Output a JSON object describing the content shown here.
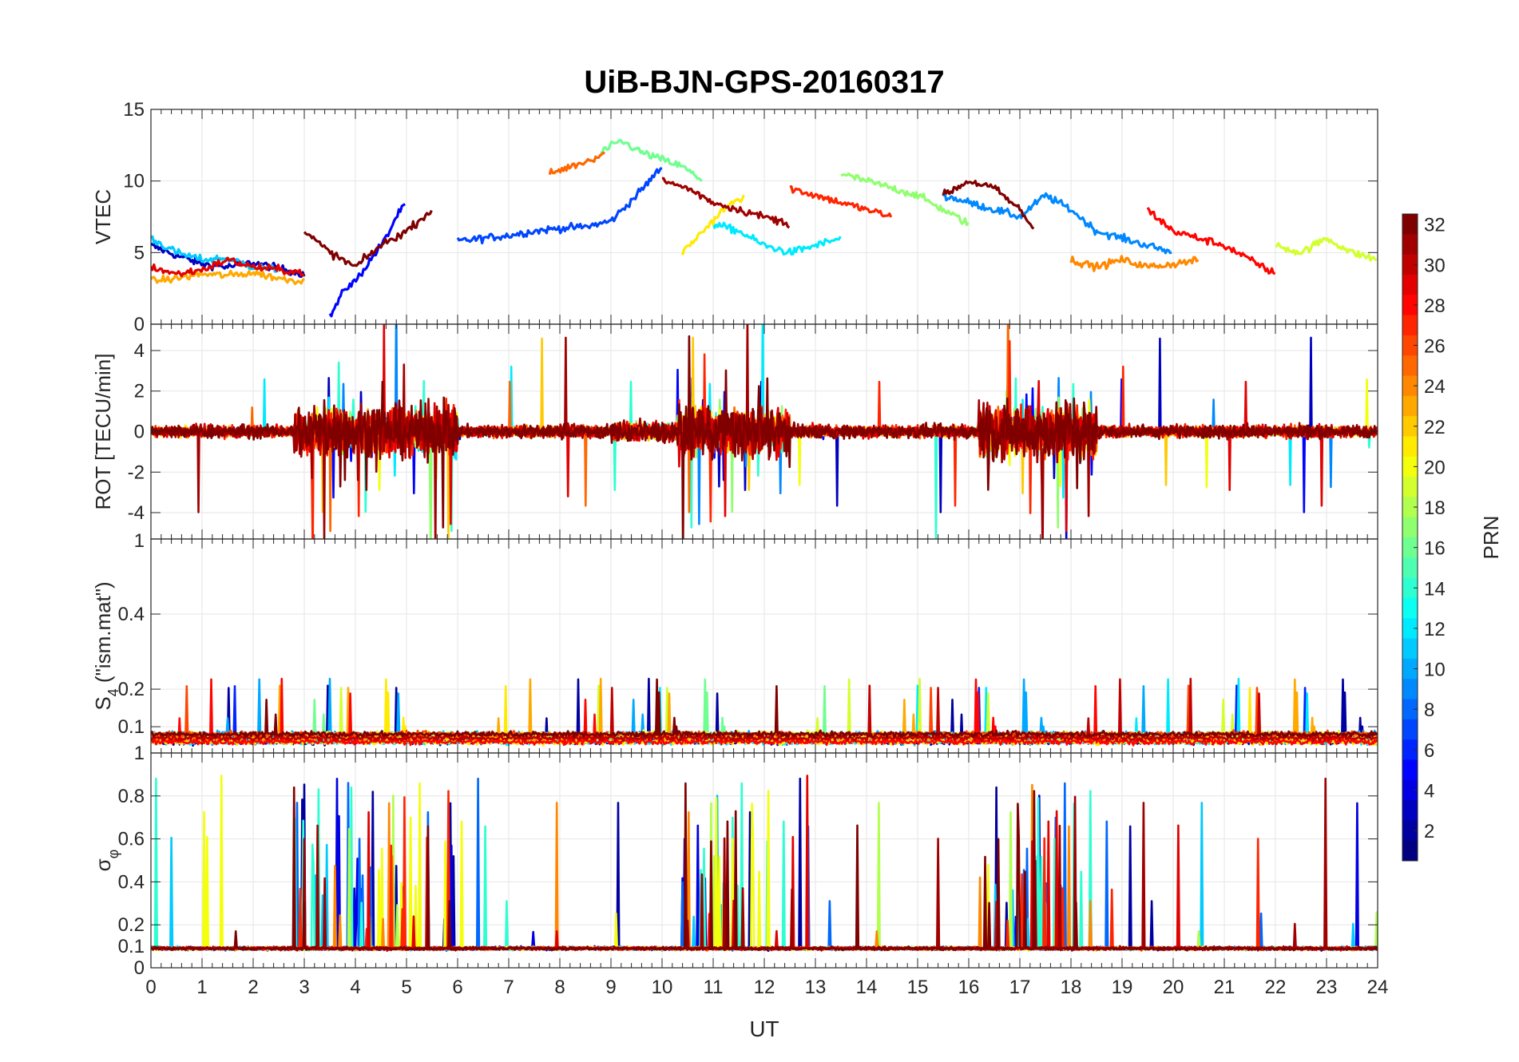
{
  "chart_data": {
    "type": "line",
    "title": "UiB-BJN-GPS-20160317",
    "xlabel": "UT",
    "xlim": [
      0,
      24
    ],
    "xticks": [
      "0",
      "1",
      "2",
      "3",
      "4",
      "5",
      "6",
      "7",
      "8",
      "9",
      "10",
      "11",
      "12",
      "13",
      "14",
      "15",
      "16",
      "17",
      "18",
      "19",
      "20",
      "21",
      "22",
      "23",
      "24"
    ],
    "grid": true,
    "colorbar": {
      "label": "PRN",
      "range": [
        1,
        32
      ],
      "colormap": "jet",
      "ticks": [
        "2",
        "4",
        "6",
        "8",
        "10",
        "12",
        "14",
        "16",
        "18",
        "20",
        "22",
        "24",
        "26",
        "28",
        "30",
        "32"
      ]
    },
    "panels": [
      {
        "id": "vtec",
        "ylabel": "VTEC",
        "ylim": [
          0,
          15
        ],
        "yticks": [
          {
            "v": 0,
            "t": "0"
          },
          {
            "v": 5,
            "t": "5"
          },
          {
            "v": 10,
            "t": "10"
          },
          {
            "v": 15,
            "t": "15"
          }
        ]
      },
      {
        "id": "rot",
        "ylabel": "ROT [TECU/min]",
        "ylim": [
          -5.3,
          5.3
        ],
        "yticks": [
          {
            "v": -4,
            "t": "-4"
          },
          {
            "v": -2,
            "t": "-2"
          },
          {
            "v": 0,
            "t": "0"
          },
          {
            "v": 2,
            "t": "2"
          },
          {
            "v": 4,
            "t": "4"
          }
        ]
      },
      {
        "id": "s4",
        "ylabel": "S4 (\"ism.mat\")",
        "ylabel_main": "S",
        "ylabel_sub": "4",
        "ylabel_rest": " (\"ism.mat\")",
        "ylim": [
          0.03,
          0.6
        ],
        "yticks": [
          {
            "v": 0.1,
            "t": "0.1"
          },
          {
            "v": 0.2,
            "t": "0.2"
          },
          {
            "v": 0.4,
            "t": "0.4"
          }
        ],
        "ytick_top": "1"
      },
      {
        "id": "sigma",
        "ylabel": "σφ",
        "ylabel_main": "σ",
        "ylabel_sub": "φ",
        "ylim": [
          0,
          1
        ],
        "yticks": [
          {
            "v": 0,
            "t": "0"
          },
          {
            "v": 0.1,
            "t": "0.1"
          },
          {
            "v": 0.2,
            "t": "0.2"
          },
          {
            "v": 0.4,
            "t": "0.4"
          },
          {
            "v": 0.6,
            "t": "0.6"
          },
          {
            "v": 0.8,
            "t": "0.8"
          },
          {
            "v": 1,
            "t": "1"
          }
        ]
      }
    ],
    "series_note_prns": [
      2,
      4,
      6,
      8,
      10,
      12,
      14,
      16,
      18,
      20,
      22,
      24,
      26,
      28,
      30,
      32
    ],
    "vtec_tracks": [
      {
        "prn": 3,
        "x": [
          0,
          0.5,
          1,
          1.5,
          2,
          2.5,
          3
        ],
        "y": [
          5.5,
          4.8,
          4.2,
          4.0,
          4.3,
          3.9,
          3.5
        ]
      },
      {
        "prn": 5,
        "x": [
          3.5,
          3.8,
          4.0,
          4.3,
          4.6,
          4.8,
          5.0
        ],
        "y": [
          0.5,
          2.5,
          3.0,
          4.5,
          6.0,
          7.5,
          8.5
        ]
      },
      {
        "prn": 7,
        "x": [
          6.0,
          6.5,
          7.0,
          7.5,
          8.0,
          8.5,
          9.0,
          9.5,
          10.0
        ],
        "y": [
          5.8,
          6.0,
          6.2,
          6.5,
          6.7,
          6.8,
          7.2,
          9.0,
          11.0
        ]
      },
      {
        "prn": 9,
        "x": [
          15.5,
          16,
          16.5,
          17,
          17.5,
          18,
          18.5,
          19,
          19.5,
          20
        ],
        "y": [
          9.0,
          8.5,
          8.0,
          7.5,
          9.0,
          8.0,
          6.5,
          6.0,
          5.5,
          5.0
        ]
      },
      {
        "prn": 11,
        "x": [
          0,
          0.5,
          1,
          1.5,
          2,
          2.5
        ],
        "y": [
          6.0,
          5.0,
          4.5,
          4.6,
          4.0,
          3.8
        ]
      },
      {
        "prn": 12,
        "x": [
          11.0,
          11.5,
          12.0,
          12.5,
          13.0,
          13.5
        ],
        "y": [
          7.0,
          6.5,
          5.5,
          5.0,
          5.5,
          6.0
        ]
      },
      {
        "prn": 16,
        "x": [
          8.8,
          9.2,
          9.6,
          10.0,
          10.4,
          10.8
        ],
        "y": [
          12.0,
          12.8,
          12.0,
          11.5,
          11.0,
          10.0
        ]
      },
      {
        "prn": 17,
        "x": [
          13.5,
          14,
          14.5,
          15,
          15.5,
          16
        ],
        "y": [
          10.5,
          10.0,
          9.5,
          9.0,
          8.0,
          7.0
        ]
      },
      {
        "prn": 19,
        "x": [
          22,
          22.5,
          23,
          23.5,
          24
        ],
        "y": [
          5.5,
          5.0,
          6.0,
          5.0,
          4.5
        ]
      },
      {
        "prn": 21,
        "x": [
          10.4,
          10.8,
          11.2,
          11.6
        ],
        "y": [
          5.0,
          6.5,
          8.0,
          9.0
        ]
      },
      {
        "prn": 23,
        "x": [
          0,
          0.5,
          1,
          1.5,
          2,
          2.5,
          3
        ],
        "y": [
          3.0,
          3.2,
          3.5,
          3.4,
          3.6,
          3.2,
          3.0
        ]
      },
      {
        "prn": 24,
        "x": [
          18,
          18.5,
          19,
          19.5,
          20,
          20.5
        ],
        "y": [
          4.5,
          4.0,
          4.5,
          4.0,
          4.2,
          4.5
        ]
      },
      {
        "prn": 25,
        "x": [
          7.8,
          8.2,
          8.6,
          8.9
        ],
        "y": [
          10.5,
          11.0,
          11.5,
          12.0
        ]
      },
      {
        "prn": 27,
        "x": [
          12.5,
          13,
          13.5,
          14,
          14.5
        ],
        "y": [
          9.5,
          9.0,
          8.5,
          8.0,
          7.5
        ]
      },
      {
        "prn": 28,
        "x": [
          19.5,
          20,
          20.5,
          21,
          21.5,
          22
        ],
        "y": [
          8.0,
          6.5,
          6.0,
          5.5,
          4.5,
          3.5
        ]
      },
      {
        "prn": 29,
        "x": [
          0,
          0.5,
          1,
          1.5,
          2,
          2.5,
          3
        ],
        "y": [
          4.0,
          3.5,
          3.8,
          4.5,
          4.0,
          3.8,
          3.6
        ]
      },
      {
        "prn": 31,
        "x": [
          10,
          10.5,
          11,
          11.5,
          12,
          12.5
        ],
        "y": [
          10.0,
          9.5,
          8.5,
          8.0,
          7.5,
          7.0
        ]
      },
      {
        "prn": 32,
        "x": [
          3.0,
          3.5,
          4.0,
          4.5,
          5.0,
          5.5
        ],
        "y": [
          6.5,
          5.0,
          4.0,
          5.5,
          6.5,
          8.0
        ]
      },
      {
        "prn": 32,
        "x": [
          15.5,
          16,
          16.5,
          17,
          17.3
        ],
        "y": [
          9.0,
          10.0,
          9.5,
          8.0,
          6.5
        ]
      }
    ]
  }
}
